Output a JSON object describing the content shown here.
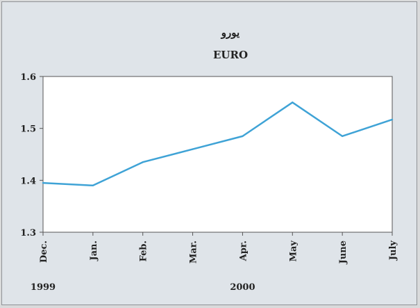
{
  "chart_data": {
    "type": "line",
    "title_local": "يورو",
    "title": "EURO",
    "categories": [
      "Dec.",
      "Jan.",
      "Feb.",
      "Mar.",
      "Apr.",
      "May",
      "June",
      "July"
    ],
    "year_labels": [
      {
        "label": "1999",
        "category": "Dec."
      },
      {
        "label": "2000",
        "category": "Apr."
      }
    ],
    "series": [
      {
        "values": [
          1.395,
          1.39,
          1.435,
          1.46,
          1.485,
          1.55,
          1.485,
          1.517
        ]
      }
    ],
    "ylim": [
      1.3,
      1.6
    ],
    "yticks": [
      "1.3",
      "1.4",
      "1.5",
      "1.6"
    ],
    "xlabel": "",
    "ylabel": "",
    "grid": false,
    "line_color": "#3fa3d6"
  }
}
